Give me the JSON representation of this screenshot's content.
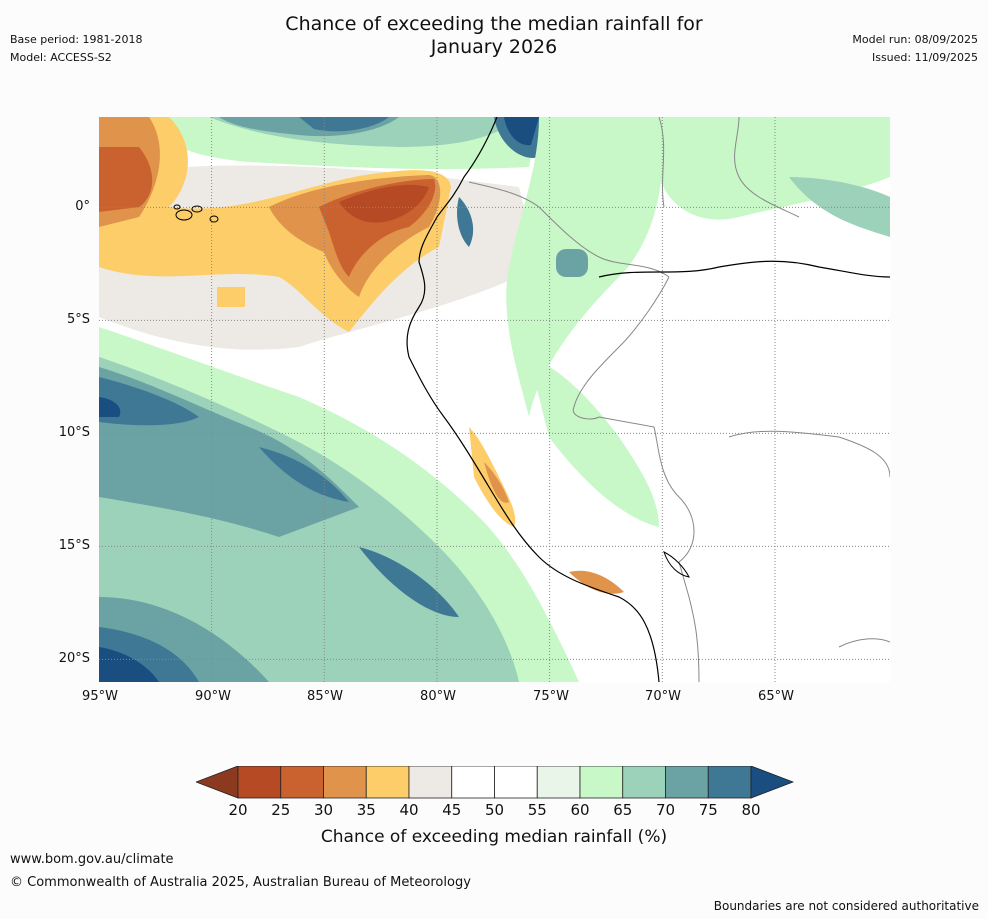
{
  "header": {
    "title_line1": "Chance of exceeding the median rainfall for",
    "title_line2": "January 2026",
    "base_period": "Base period: 1981-2018",
    "model": "Model: ACCESS-S2",
    "model_run": "Model run: 08/09/2025",
    "issued": "Issued: 11/09/2025"
  },
  "map": {
    "lat_labels": [
      "0°",
      "5°S",
      "10°S",
      "15°S",
      "20°S"
    ],
    "lon_labels": [
      "95°W",
      "90°W",
      "85°W",
      "80°W",
      "75°W",
      "70°W",
      "65°W"
    ],
    "extent": {
      "lon_min": -95,
      "lon_max": -60,
      "lat_min": -21,
      "lat_max": 4
    }
  },
  "colorbar": {
    "ticks": [
      "20",
      "25",
      "30",
      "35",
      "40",
      "45",
      "50",
      "55",
      "60",
      "65",
      "70",
      "75",
      "80"
    ],
    "colors": [
      "#8c3a1f",
      "#b54a25",
      "#c9622f",
      "#e0934a",
      "#fdcd6a",
      "#ede9e4",
      "#ffffff",
      "#ffffff",
      "#eaf5ea",
      "#c8f8c8",
      "#9cd1ba",
      "#6ba2a4",
      "#3e7895",
      "#1a4d80"
    ],
    "label": "Chance of exceeding median rainfall (%)"
  },
  "footer": {
    "url": "www.bom.gov.au/climate",
    "copyright": "© Commonwealth of Australia 2025, Australian Bureau of Meteorology",
    "disclaimer": "Boundaries are not considered authoritative"
  }
}
